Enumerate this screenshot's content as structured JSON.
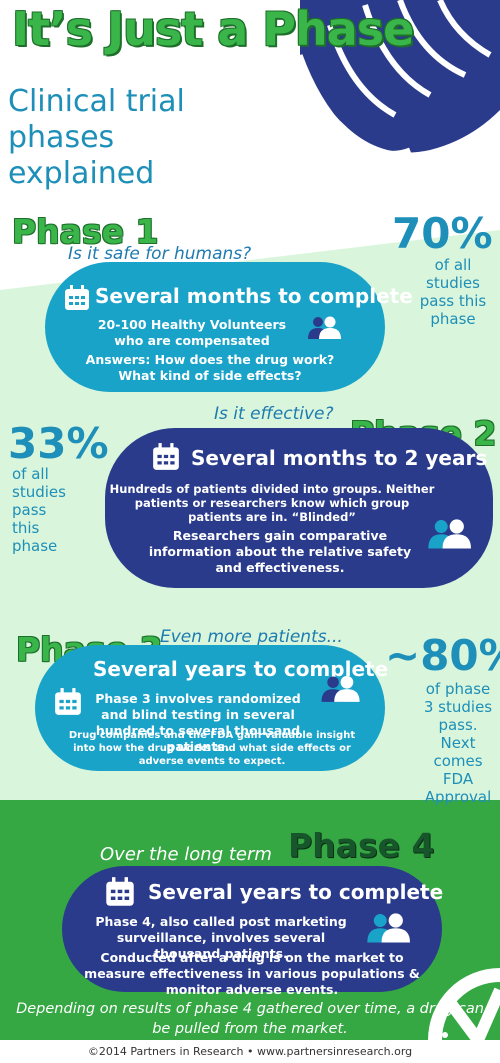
{
  "header": {
    "title": "It’s Just a Phase",
    "subtitle": "Clinical trial phases explained"
  },
  "colors": {
    "green": "#39b54a",
    "dark_green": "#1d6f2a",
    "teal": "#1aa3c9",
    "navy": "#2a3b8c",
    "light_green_bg": "#d9f5dc",
    "phase4_bg": "#35a843"
  },
  "phase1": {
    "title": "Phase 1",
    "question": "Is it safe for humans?",
    "duration": "Several months to complete",
    "participants": "20-100 Healthy Volunteers who are compensated",
    "answers": "Answers: How does the drug work? What kind of side effects?",
    "pct": "70%",
    "pct_note": "of all studies pass this phase",
    "icons": [
      "calendar-icon",
      "people-icon"
    ]
  },
  "phase2": {
    "title": "Phase 2",
    "question": "Is it effective?",
    "duration": "Several months to 2 years",
    "participants": "Hundreds of patients divided into groups. Neither patients or researchers know which group patients are in. “Blinded”",
    "outcome": "Researchers gain comparative information about the relative safety and effectiveness.",
    "pct": "33%",
    "pct_note": "of all studies pass this phase",
    "icons": [
      "calendar-icon",
      "people-icon"
    ]
  },
  "phase3": {
    "title": "Phase 3",
    "question": "Even more patients...",
    "duration": "Several years to complete",
    "participants": "Phase 3 involves randomized and blind testing in several hundred to several thousand patients.",
    "outcome": "Drug companies and the FDA gain valuable insight into how the drug works and what side effects or adverse events to expect.",
    "pct": "~80%",
    "pct_note": "of phase 3 studies pass. Next comes FDA Approval",
    "icons": [
      "calendar-icon",
      "people-icon"
    ]
  },
  "phase4": {
    "title": "Phase 4",
    "question": "Over the long term",
    "duration": "Several years to complete",
    "participants": "Phase 4, also called post marketing surveillance, involves several thousand patients.",
    "outcome": "Conducted after a drug is on the market to measure effectiveness in various populations & monitor adverse events.",
    "icons": [
      "calendar-icon",
      "people-icon",
      "clock-check-icon"
    ]
  },
  "footnote": "Depending on results of phase 4 gathered over time, a drug can be pulled from the market.",
  "footer": "©2014 Partners in Research • www.partnersinresearch.org"
}
